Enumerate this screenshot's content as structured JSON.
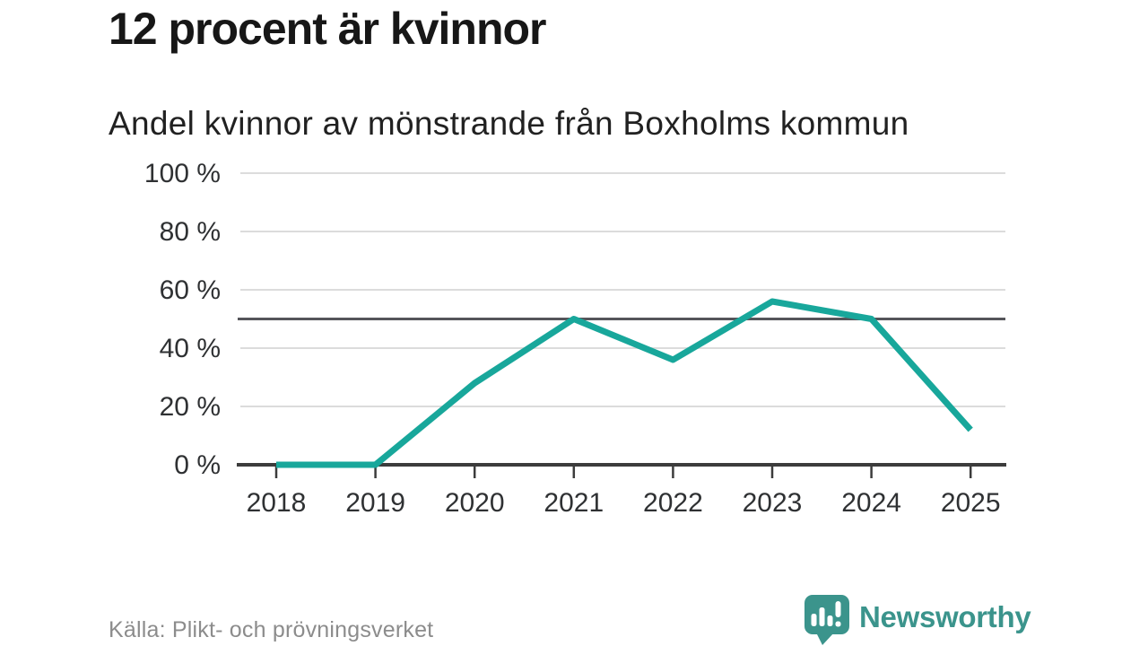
{
  "chart_data": {
    "type": "line",
    "title": "12 procent är kvinnor",
    "subtitle": "Andel kvinnor av mönstrande från Boxholms kommun",
    "x": [
      2018,
      2019,
      2020,
      2021,
      2022,
      2023,
      2024,
      2025
    ],
    "series": [
      {
        "name": "Andel kvinnor",
        "values": [
          0,
          0,
          28,
          50,
          36,
          56,
          50,
          12
        ]
      }
    ],
    "unit": "%",
    "ylim": [
      0,
      100
    ],
    "yticks": [
      {
        "value": 0,
        "label": "0 %"
      },
      {
        "value": 20,
        "label": "20 %"
      },
      {
        "value": 40,
        "label": "40 %"
      },
      {
        "value": 60,
        "label": "60 %"
      },
      {
        "value": 80,
        "label": "80 %"
      },
      {
        "value": 100,
        "label": "100 %"
      }
    ],
    "reference_line": {
      "value": 50
    },
    "grid": true,
    "legend": "none",
    "colors": {
      "line": "#18A79B",
      "grid": "#DCDCDC",
      "axis": "#3C3C3C",
      "reference": "#55555A",
      "tick_label": "#2F3133"
    }
  },
  "footer": {
    "source": "Källa: Plikt- och prövningsverket",
    "brand": {
      "name": "Newsworthy",
      "color": "#3B948C",
      "icon": "newsworthy-speech-bubble-bar-chart-icon"
    }
  }
}
